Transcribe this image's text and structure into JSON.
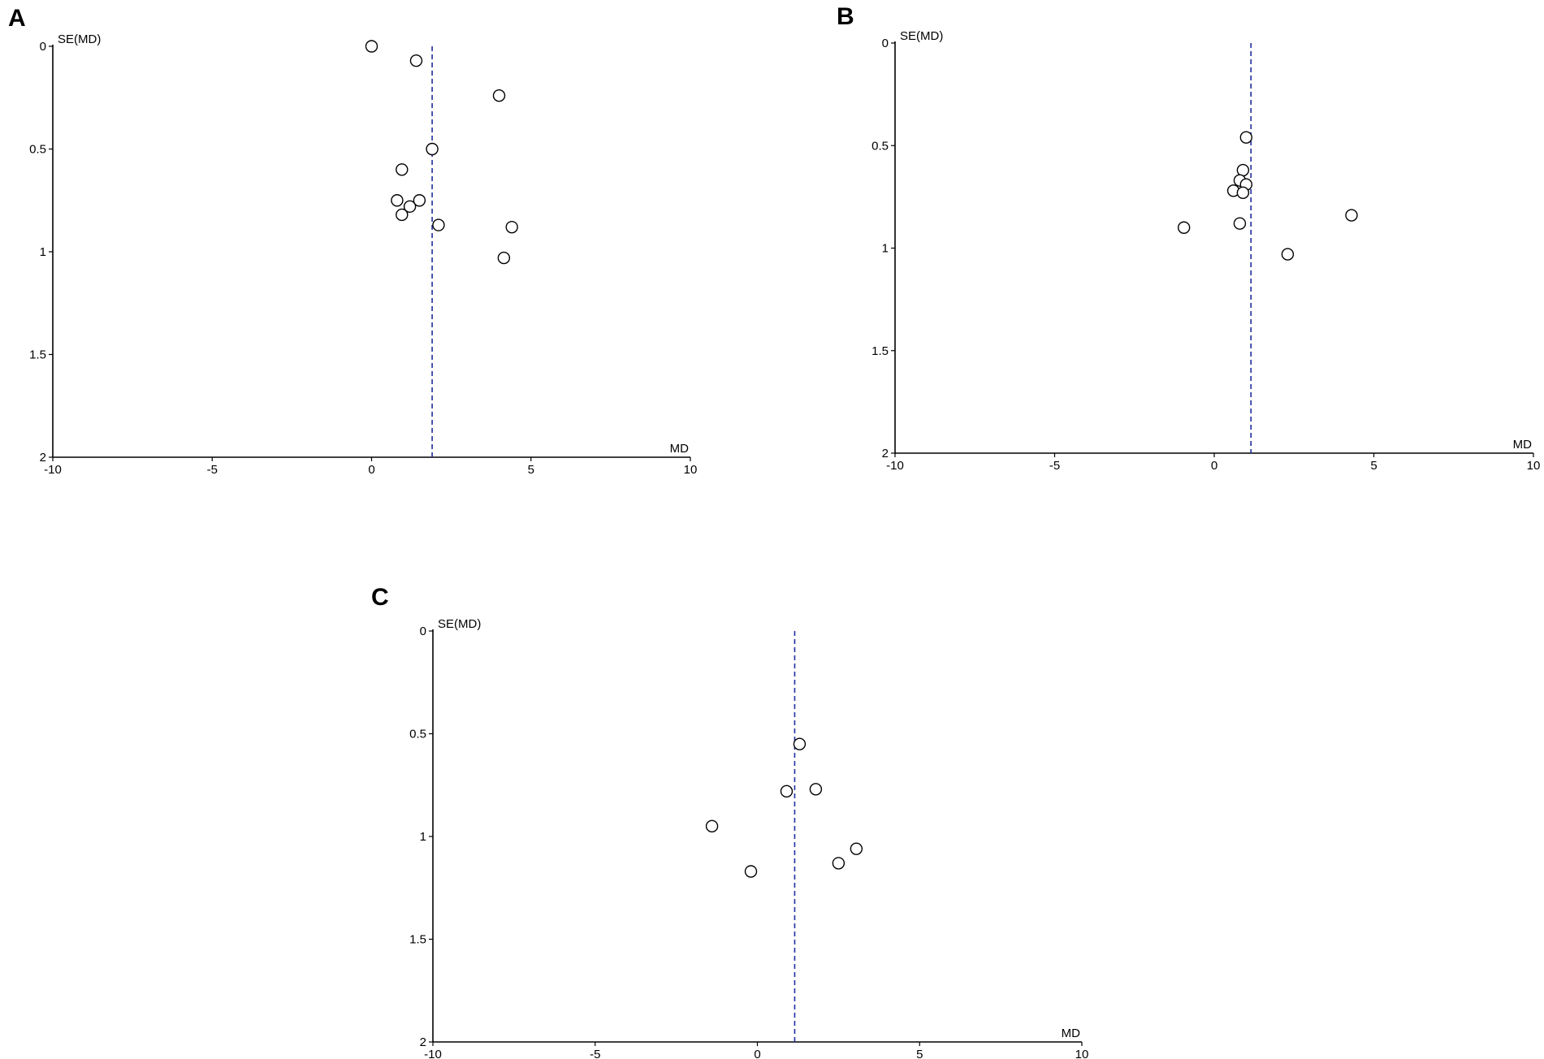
{
  "chart_data": [
    {
      "type": "scatter",
      "panel_label": "A",
      "title": "",
      "xlabel": "MD",
      "ylabel": "SE(MD)",
      "xlim": [
        -10,
        10
      ],
      "ylim": [
        0,
        2
      ],
      "y_reversed": true,
      "xticks": [
        "-10",
        "-5",
        "0",
        "5",
        "10"
      ],
      "yticks": [
        "0",
        "0.5",
        "1",
        "1.5",
        "2"
      ],
      "pooled_md": 1.9,
      "reference_line_color": "#1f2e9e",
      "points": [
        {
          "x": 0.0,
          "y": 0.0
        },
        {
          "x": 1.4,
          "y": 0.07
        },
        {
          "x": 4.0,
          "y": 0.24
        },
        {
          "x": 1.9,
          "y": 0.5
        },
        {
          "x": 0.95,
          "y": 0.6
        },
        {
          "x": 0.8,
          "y": 0.75
        },
        {
          "x": 1.2,
          "y": 0.78
        },
        {
          "x": 1.5,
          "y": 0.75
        },
        {
          "x": 0.95,
          "y": 0.82
        },
        {
          "x": 2.1,
          "y": 0.87
        },
        {
          "x": 4.4,
          "y": 0.88
        },
        {
          "x": 4.15,
          "y": 1.03
        }
      ]
    },
    {
      "type": "scatter",
      "panel_label": "B",
      "title": "",
      "xlabel": "MD",
      "ylabel": "SE(MD)",
      "xlim": [
        -10,
        10
      ],
      "ylim": [
        0,
        2
      ],
      "y_reversed": true,
      "xticks": [
        "-10",
        "-5",
        "0",
        "5",
        "10"
      ],
      "yticks": [
        "0",
        "0.5",
        "1",
        "1.5",
        "2"
      ],
      "pooled_md": 1.15,
      "reference_line_color": "#1f2e9e",
      "points": [
        {
          "x": 1.0,
          "y": 0.46
        },
        {
          "x": 0.9,
          "y": 0.62
        },
        {
          "x": 0.8,
          "y": 0.67
        },
        {
          "x": 1.0,
          "y": 0.69
        },
        {
          "x": 0.6,
          "y": 0.72
        },
        {
          "x": 0.9,
          "y": 0.73
        },
        {
          "x": 0.8,
          "y": 0.88
        },
        {
          "x": -0.95,
          "y": 0.9
        },
        {
          "x": 4.3,
          "y": 0.84
        },
        {
          "x": 2.3,
          "y": 1.03
        }
      ]
    },
    {
      "type": "scatter",
      "panel_label": "C",
      "title": "",
      "xlabel": "MD",
      "ylabel": "SE(MD)",
      "xlim": [
        -10,
        10
      ],
      "ylim": [
        0,
        2
      ],
      "y_reversed": true,
      "xticks": [
        "-10",
        "-5",
        "0",
        "5",
        "10"
      ],
      "yticks": [
        "0",
        "0.5",
        "1",
        "1.5",
        "2"
      ],
      "pooled_md": 1.15,
      "reference_line_color": "#1f2e9e",
      "points": [
        {
          "x": 1.3,
          "y": 0.55
        },
        {
          "x": 0.9,
          "y": 0.78
        },
        {
          "x": 1.8,
          "y": 0.77
        },
        {
          "x": -1.4,
          "y": 0.95
        },
        {
          "x": 3.05,
          "y": 1.06
        },
        {
          "x": 2.5,
          "y": 1.13
        },
        {
          "x": -0.2,
          "y": 1.17
        }
      ]
    }
  ]
}
